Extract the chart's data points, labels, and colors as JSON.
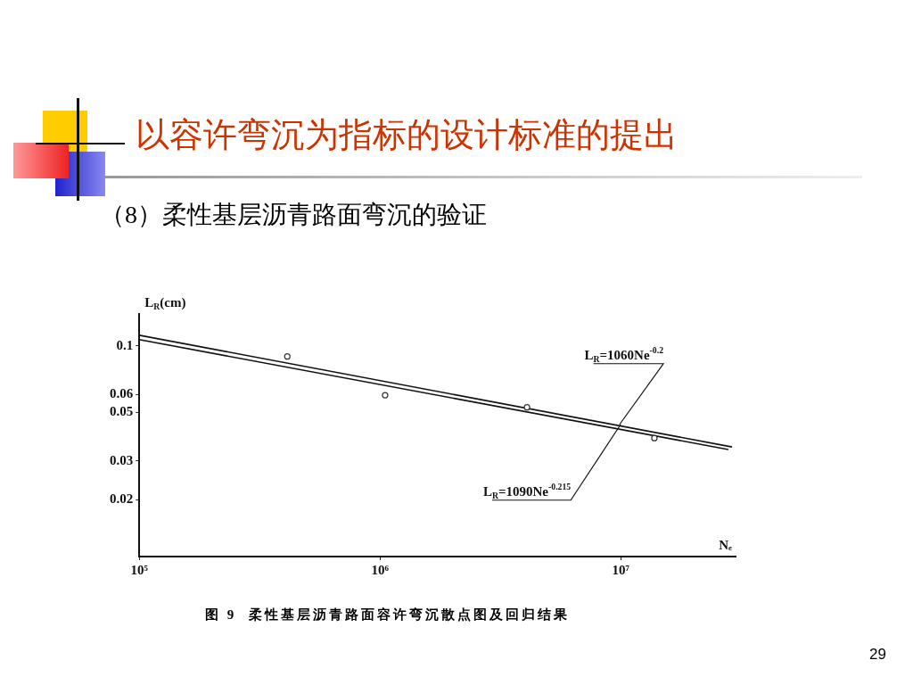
{
  "chart_data": {
    "type": "scatter",
    "title": "以容许弯沉为指标的设计标准的提出",
    "subtitle": "（8）柔性基层沥青路面弯沉的验证",
    "xlabel": "Nₑ",
    "ylabel": "L$_{R}$(cm)",
    "log": "xy",
    "xlim": [
      100000,
      30000000
    ],
    "ylim": [
      0.011,
      0.14
    ],
    "xticks": [
      {
        "value": 100000,
        "label": "10⁵"
      },
      {
        "value": 1000000,
        "label": "10⁶"
      },
      {
        "value": 10000000,
        "label": "10⁷"
      }
    ],
    "yticks": [
      0.02,
      0.03,
      0.05,
      0.06,
      0.1
    ],
    "grid": false,
    "legend": false,
    "marker": "circle",
    "series": [
      {
        "color": "#333333",
        "x": [
          412000,
          1050000,
          4080000,
          13800000
        ],
        "values": [
          0.0896,
          0.0597,
          0.0526,
          0.0381
        ]
      },
      {
        "type": "line",
        "color": "#111111",
        "marker": "none",
        "x": [
          100000,
          29000000
        ],
        "values": [
          0.112,
          0.0347
        ]
      },
      {
        "type": "line",
        "color": "#111111",
        "marker": "none",
        "x": [
          100000,
          28000000
        ],
        "values": [
          0.107,
          0.0338
        ]
      }
    ],
    "annotations": [
      {
        "text": "L$_{R}$=1060Ne$^{-0.2}$",
        "x": 9900000,
        "y": 0.044
      },
      {
        "text": "L$_{R}$=1090Ne$^{-0.215}$",
        "x": 10000000,
        "y": 0.044
      },
      "图 9  柔性基层沥青路面容许弯沉散点图及回归结果",
      "29"
    ]
  }
}
